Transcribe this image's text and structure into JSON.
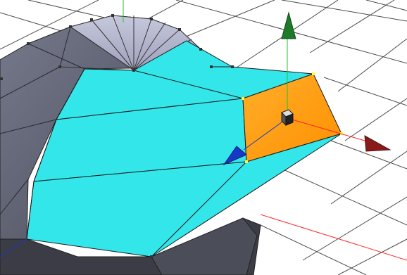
{
  "viewport": {
    "background_color": "#ffffff",
    "grid_color": "#555555",
    "sphere_color": "#5c5f6e",
    "sphere_cap_color": "#a9acc4",
    "extruded_faces_color": "#33e6ea",
    "selected_face_color": "#ff9a12",
    "vertex_color": "#333333",
    "selected_vertex_color": "#ffff33"
  },
  "gizmo": {
    "mode": "move",
    "x_axis": {
      "icon": "arrow-red-icon",
      "color": "#8a1a1a",
      "line_color": "#ff2020"
    },
    "y_axis": {
      "icon": "arrow-green-icon",
      "color": "#1c7a28",
      "line_color": "#22c22e"
    },
    "z_axis": {
      "icon": "arrow-blue-icon",
      "color": "#1838c8",
      "line_color": "#1838c8"
    },
    "center": {
      "icon": "cube-handle-icon",
      "color": "#333333"
    }
  }
}
